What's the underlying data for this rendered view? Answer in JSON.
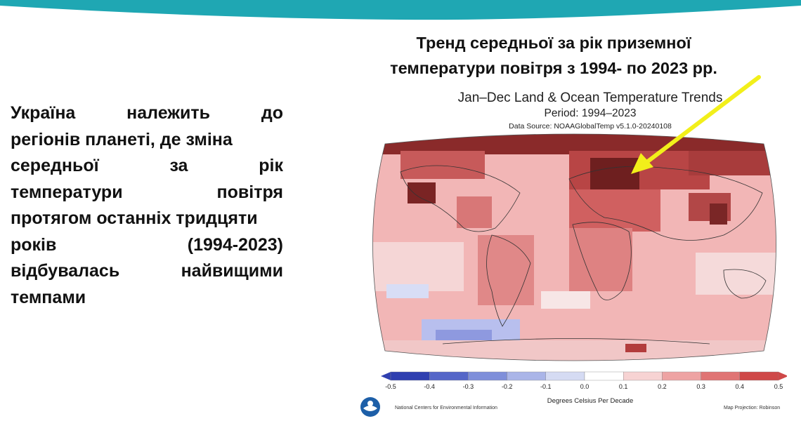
{
  "left_text": {
    "lines": [
      [
        "Україна",
        "належить",
        "до"
      ],
      [
        "регіонів планеті, де зміна"
      ],
      [
        "середньої",
        "за",
        "рік"
      ],
      [
        "температури",
        "повітря"
      ],
      [
        "протягом останніх тридцяти"
      ],
      [
        "років",
        "(1994-2023)"
      ],
      [
        "відбувалась",
        "найвищими"
      ],
      [
        "темпами"
      ]
    ]
  },
  "slide_title": {
    "line1": "Тренд середньої за рік приземної",
    "line2": "температури повітря з 1994- по 2023 рр."
  },
  "map": {
    "title": "Jan–Dec Land & Ocean Temperature Trends",
    "period": "Period: 1994–2023",
    "data_source": "Data Source: NOAAGlobalTemp v5.1.0-20240108",
    "colorbar_ticks": [
      "-0.5",
      "-0.4",
      "-0.3",
      "-0.2",
      "-0.1",
      "0.0",
      "0.1",
      "0.2",
      "0.3",
      "0.4",
      "0.5"
    ],
    "colorbar_colors": [
      "#2f3fb0",
      "#5566c8",
      "#7f8fda",
      "#aab5e8",
      "#d5dbf3",
      "#ffffff",
      "#f7d3d3",
      "#eea3a3",
      "#e07474",
      "#cf4848"
    ],
    "colorbar_label": "Degrees Celsius Per Decade",
    "ncei_label": "National Centers for Environmental Information",
    "projection_label": "Map Projection: Robinson"
  },
  "colors": {
    "teal": "#1fa7b3",
    "arrow": "#f2ef1a"
  }
}
